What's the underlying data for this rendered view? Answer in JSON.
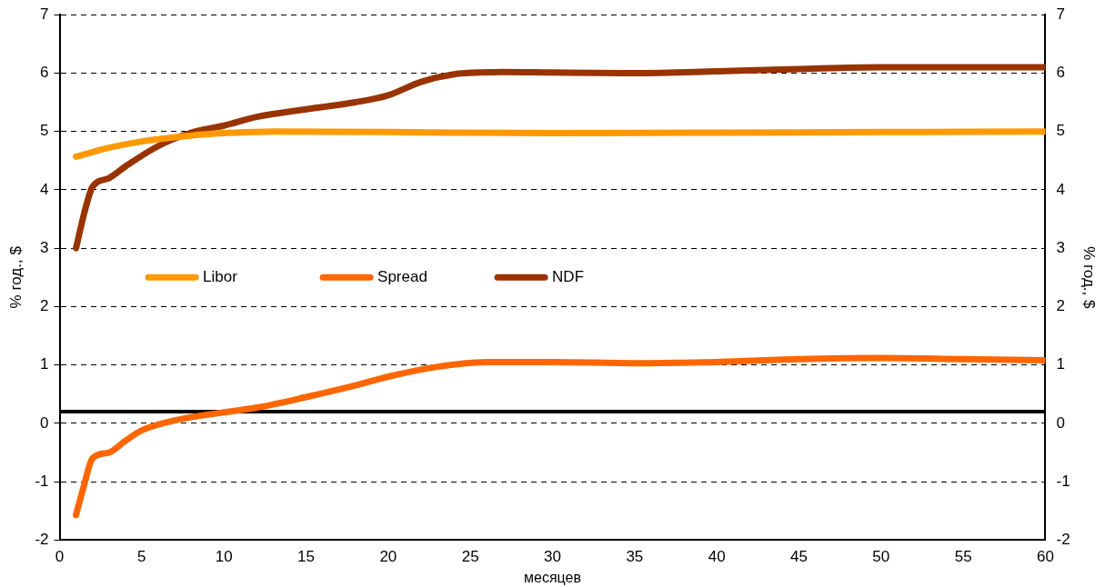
{
  "chart_data": {
    "type": "line",
    "xlabel": "месяцев",
    "ylabel": "% год., $",
    "y2label": "% год., $",
    "xlim": [
      0,
      60
    ],
    "xticks": [
      0,
      5,
      10,
      15,
      20,
      25,
      30,
      35,
      40,
      45,
      50,
      55,
      60
    ],
    "ylim": [
      -2,
      7
    ],
    "yticks": [
      -2,
      -1,
      0,
      1,
      2,
      3,
      4,
      5,
      6,
      7
    ],
    "y2lim": [
      -2,
      7
    ],
    "y2ticks": [
      -2,
      -1,
      0,
      1,
      2,
      3,
      4,
      5,
      6,
      7
    ],
    "grid": "y",
    "legend": "left",
    "marker": "none",
    "line_style": "solid",
    "ref_lines": [
      {
        "axis": "y",
        "value": 0.2,
        "color": "#000000"
      }
    ],
    "series": [
      {
        "name": "Libor",
        "color": "#ff9900",
        "x": [
          1,
          3,
          5,
          8,
          10,
          13,
          20,
          30,
          40,
          50,
          60
        ],
        "values": [
          4.57,
          4.72,
          4.83,
          4.93,
          4.97,
          5.0,
          4.99,
          4.97,
          4.98,
          4.99,
          5.0
        ]
      },
      {
        "name": "Spread",
        "color": "#ff6600",
        "x": [
          1,
          1.5,
          2,
          3,
          4,
          5,
          7,
          9,
          12,
          15,
          18,
          20,
          23,
          26,
          30,
          35,
          40,
          45,
          50,
          55,
          60
        ],
        "values": [
          -1.57,
          -1.05,
          -0.6,
          -0.5,
          -0.3,
          -0.12,
          0.05,
          0.15,
          0.27,
          0.45,
          0.65,
          0.8,
          0.97,
          1.05,
          1.05,
          1.03,
          1.05,
          1.1,
          1.12,
          1.1,
          1.08
        ]
      },
      {
        "name": "NDF",
        "color": "#993300",
        "x": [
          1,
          1.5,
          2,
          3,
          4,
          6,
          8,
          10,
          12,
          15,
          18,
          20,
          22,
          24,
          27,
          30,
          35,
          40,
          45,
          50,
          55,
          60
        ],
        "values": [
          3.0,
          3.6,
          4.05,
          4.2,
          4.4,
          4.75,
          4.98,
          5.1,
          5.25,
          5.38,
          5.5,
          5.62,
          5.85,
          5.98,
          6.02,
          6.01,
          6.0,
          6.03,
          6.07,
          6.1,
          6.1,
          6.1
        ]
      }
    ]
  }
}
